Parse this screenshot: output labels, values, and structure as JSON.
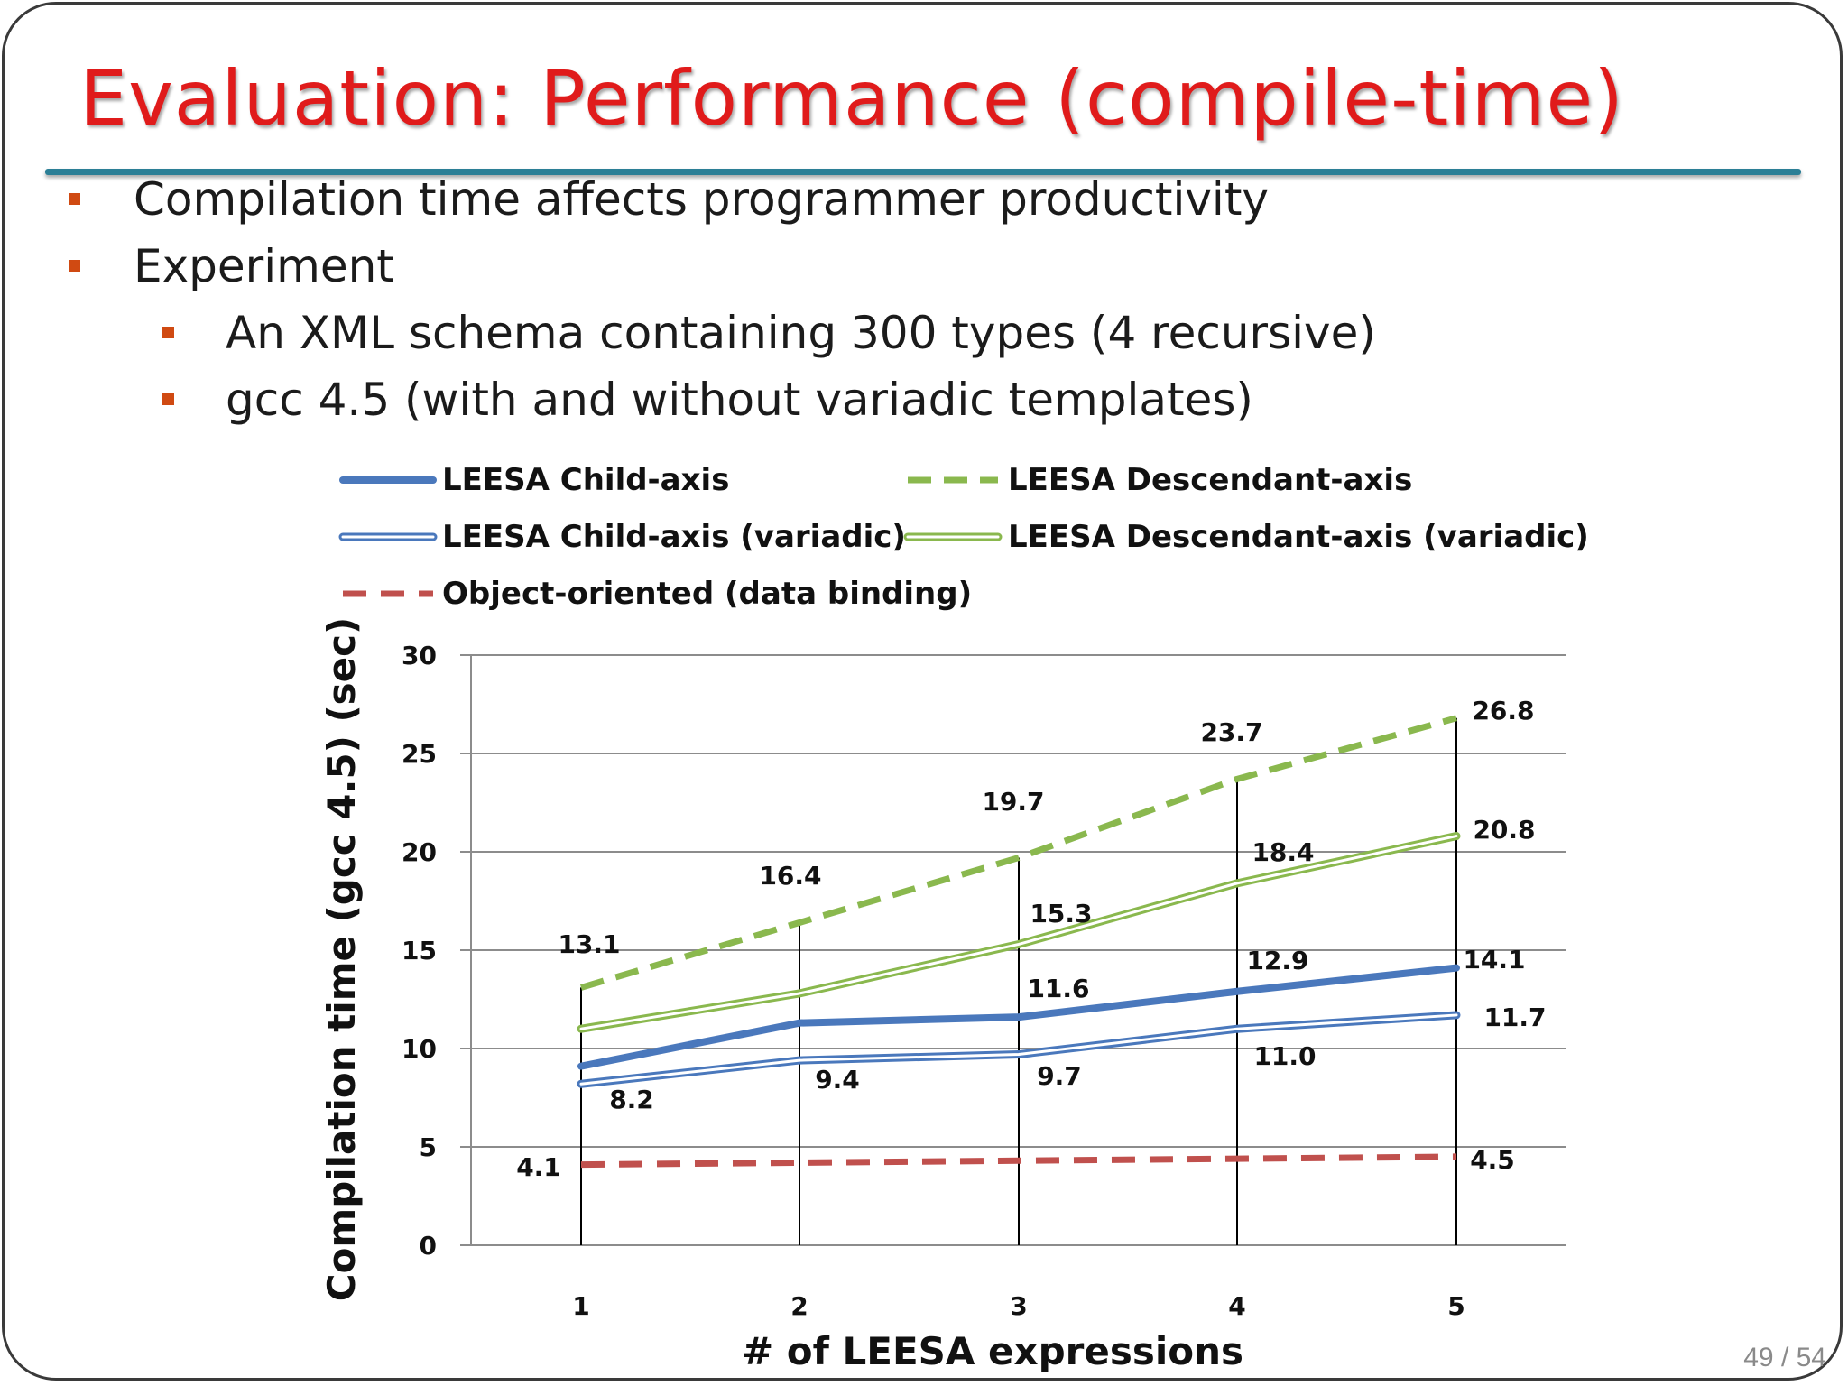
{
  "slide": {
    "title": "Evaluation: Performance (compile-time)",
    "page_number": "49 / 54",
    "bullets": [
      {
        "level": 1,
        "text": "Compilation time affects programmer productivity"
      },
      {
        "level": 1,
        "text": "Experiment"
      },
      {
        "level": 2,
        "text": "An XML schema containing 300 types (4 recursive)"
      },
      {
        "level": 2,
        "text": "gcc 4.5 (with and without variadic templates)"
      }
    ]
  },
  "colors": {
    "title": "#e01b1b",
    "rule": "#2c7f96",
    "bullet": "#d04a12",
    "blue": "#4a78bc",
    "green": "#8ab84e",
    "red": "#c0504d"
  },
  "chart_data": {
    "type": "line",
    "title": "",
    "xlabel": "# of LEESA expressions",
    "ylabel": "Compilation time (gcc 4.5) (sec)",
    "categories": [
      "1",
      "2",
      "3",
      "4",
      "5"
    ],
    "ylim": [
      0,
      30
    ],
    "yticks": [
      0,
      5,
      10,
      15,
      20,
      25,
      30
    ],
    "grid": true,
    "legend_position": "top",
    "series": [
      {
        "name": "LEESA Child-axis",
        "style": "solid-blue",
        "values": [
          9.1,
          11.3,
          11.6,
          12.9,
          14.1
        ],
        "labels": [
          null,
          null,
          "11.6",
          "12.9",
          "14.1"
        ]
      },
      {
        "name": "LEESA Descendant-axis",
        "style": "dashed-green",
        "values": [
          13.1,
          16.4,
          19.7,
          23.7,
          26.8
        ],
        "labels": [
          "13.1",
          "16.4",
          "19.7",
          "23.7",
          "26.8"
        ]
      },
      {
        "name": "LEESA Child-axis (variadic)",
        "style": "double-blue",
        "values": [
          8.2,
          9.4,
          9.7,
          11.0,
          11.7
        ],
        "labels": [
          "8.2",
          "9.4",
          "9.7",
          "11.0",
          "11.7"
        ]
      },
      {
        "name": "LEESA Descendant-axis (variadic)",
        "style": "double-green",
        "values": [
          11.0,
          12.8,
          15.3,
          18.4,
          20.8
        ],
        "labels": [
          null,
          null,
          "15.3",
          "18.4",
          "20.8"
        ]
      },
      {
        "name": "Object-oriented (data binding)",
        "style": "dashed-red",
        "values": [
          4.1,
          4.2,
          4.3,
          4.4,
          4.5
        ],
        "labels": [
          "4.1",
          null,
          null,
          null,
          "4.5"
        ]
      }
    ],
    "drop_lines": [
      13.1,
      16.4,
      19.7,
      23.7,
      26.8
    ]
  }
}
